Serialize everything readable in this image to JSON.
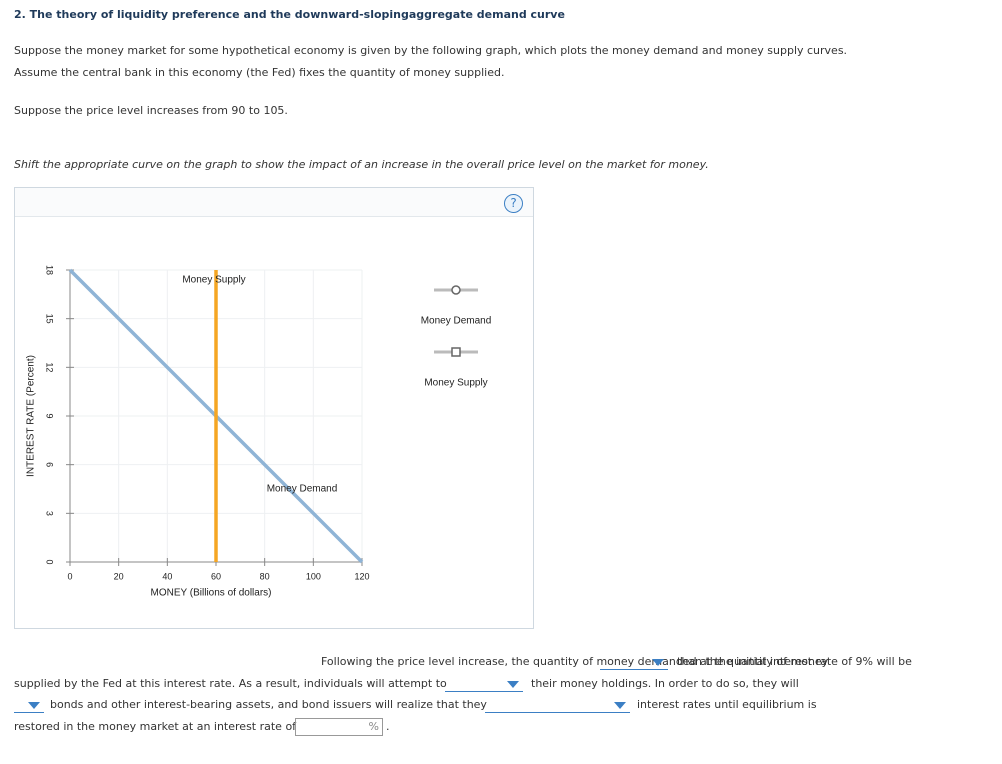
{
  "header": {
    "title": "2. The theory of liquidity preference and the downward-slopingaggregate demand curve"
  },
  "intro": [
    "Suppose the money market for some hypothetical economy is given by the following graph, which plots the money demand and money supply curves.",
    "Assume the central bank in this economy (the Fed) fixes the quantity of money supplied.",
    "Suppose the price level increases from 90 to 105."
  ],
  "instruction": "Shift the appropriate curve on the graph to show the impact of an increase in the overall price level on the market for money.",
  "help_icon": "?",
  "chart_data": {
    "type": "line",
    "x_label": "MONEY (Billions of dollars)",
    "y_label": "INTEREST RATE (Percent)",
    "xlim": [
      0,
      120
    ],
    "xticks": [
      0,
      20,
      40,
      60,
      80,
      100,
      120
    ],
    "ylim": [
      0,
      18
    ],
    "yticks": [
      0,
      3,
      6,
      9,
      12,
      15,
      18
    ],
    "grid": true,
    "series": [
      {
        "name": "Money Demand",
        "color": "#8fb4d6",
        "marker": "circle",
        "x": [
          0,
          120
        ],
        "values": [
          18,
          0
        ]
      },
      {
        "name": "Money Supply",
        "color": "#f5a623",
        "marker": "square",
        "x": [
          60,
          60
        ],
        "values": [
          0,
          18
        ]
      }
    ]
  },
  "question": {
    "line1a": "Following the price level increase, the quantity of money demanded at the initial interest rate of 9% will be",
    "line1b": "than the quantity of money",
    "line2a": "supplied by the Fed at this interest rate. As a result, individuals will attempt to",
    "line2b": "their money holdings. In order to do so, they will",
    "line3a": "bonds and other interest-bearing assets, and bond issuers will realize that they",
    "line3b": "interest rates until equilibrium is",
    "line4": "restored in the money market at an interest rate of",
    "unit": "%",
    "end": "."
  }
}
